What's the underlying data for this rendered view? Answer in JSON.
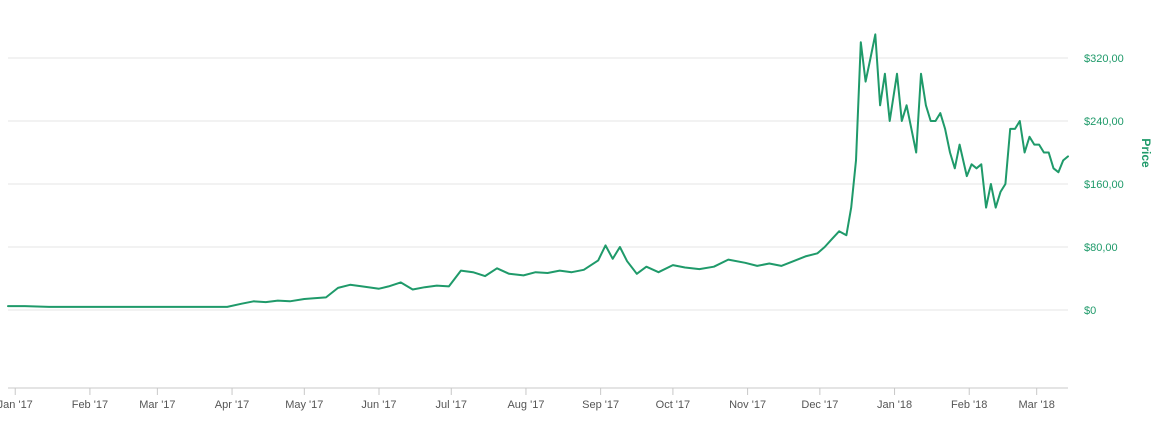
{
  "chart_data": {
    "type": "line",
    "title": "",
    "xlabel": "",
    "ylabel": "Price",
    "ylim": [
      -80,
      360
    ],
    "y_ticks": [
      "$0",
      "$80,00",
      "$160,00",
      "$240,00",
      "$320,00"
    ],
    "y_tick_values": [
      0,
      80,
      160,
      240,
      320
    ],
    "x_tick_labels": [
      "Jan '17",
      "Feb '17",
      "Mar '17",
      "Apr '17",
      "May '17",
      "Jun '17",
      "Jul '17",
      "Aug '17",
      "Sep '17",
      "Oct '17",
      "Nov '17",
      "Dec '17",
      "Jan '18",
      "Feb '18",
      "Mar '18"
    ],
    "x_tick_dates": [
      "2017-01-01",
      "2017-02-01",
      "2017-03-01",
      "2017-04-01",
      "2017-05-01",
      "2017-06-01",
      "2017-07-01",
      "2017-08-01",
      "2017-09-01",
      "2017-10-01",
      "2017-11-01",
      "2017-12-01",
      "2018-01-01",
      "2018-02-01",
      "2018-03-01"
    ],
    "x_range": [
      "2016-12-29",
      "2018-03-14"
    ],
    "grid": true,
    "legend": "none",
    "colors": {
      "line": "#1f9a6a",
      "axis_text": "#1f9a6a",
      "grid": "#e6e6e6"
    },
    "series": [
      {
        "x": [
          "2016-12-29",
          "2017-01-05",
          "2017-01-15",
          "2017-01-25",
          "2017-02-05",
          "2017-02-15",
          "2017-02-25",
          "2017-03-05",
          "2017-03-15",
          "2017-03-25",
          "2017-03-30",
          "2017-04-05",
          "2017-04-10",
          "2017-04-15",
          "2017-04-20",
          "2017-04-25",
          "2017-05-01",
          "2017-05-05",
          "2017-05-10",
          "2017-05-15",
          "2017-05-20",
          "2017-05-25",
          "2017-06-01",
          "2017-06-05",
          "2017-06-10",
          "2017-06-15",
          "2017-06-20",
          "2017-06-25",
          "2017-06-30",
          "2017-07-05",
          "2017-07-10",
          "2017-07-15",
          "2017-07-20",
          "2017-07-25",
          "2017-07-31",
          "2017-08-05",
          "2017-08-10",
          "2017-08-15",
          "2017-08-20",
          "2017-08-25",
          "2017-08-31",
          "2017-09-03",
          "2017-09-06",
          "2017-09-09",
          "2017-09-12",
          "2017-09-16",
          "2017-09-20",
          "2017-09-25",
          "2017-10-01",
          "2017-10-06",
          "2017-10-12",
          "2017-10-18",
          "2017-10-24",
          "2017-10-31",
          "2017-11-05",
          "2017-11-10",
          "2017-11-15",
          "2017-11-20",
          "2017-11-25",
          "2017-11-30",
          "2017-12-03",
          "2017-12-06",
          "2017-12-09",
          "2017-12-12",
          "2017-12-14",
          "2017-12-16",
          "2017-12-18",
          "2017-12-20",
          "2017-12-22",
          "2017-12-24",
          "2017-12-26",
          "2017-12-28",
          "2017-12-30",
          "2018-01-02",
          "2018-01-04",
          "2018-01-06",
          "2018-01-08",
          "2018-01-10",
          "2018-01-12",
          "2018-01-14",
          "2018-01-16",
          "2018-01-18",
          "2018-01-20",
          "2018-01-22",
          "2018-01-24",
          "2018-01-26",
          "2018-01-28",
          "2018-01-31",
          "2018-02-02",
          "2018-02-04",
          "2018-02-06",
          "2018-02-08",
          "2018-02-10",
          "2018-02-12",
          "2018-02-14",
          "2018-02-16",
          "2018-02-18",
          "2018-02-20",
          "2018-02-22",
          "2018-02-24",
          "2018-02-26",
          "2018-02-28",
          "2018-03-02",
          "2018-03-04",
          "2018-03-06",
          "2018-03-08",
          "2018-03-10",
          "2018-03-12",
          "2018-03-14"
        ],
        "y": [
          5,
          5,
          4,
          4,
          4,
          4,
          4,
          4,
          4,
          4,
          4,
          8,
          11,
          10,
          12,
          11,
          14,
          15,
          16,
          28,
          32,
          30,
          27,
          30,
          35,
          26,
          29,
          31,
          30,
          50,
          48,
          43,
          53,
          46,
          44,
          48,
          47,
          50,
          48,
          51,
          63,
          82,
          65,
          80,
          62,
          46,
          55,
          48,
          57,
          54,
          52,
          55,
          64,
          60,
          56,
          59,
          56,
          62,
          68,
          72,
          80,
          90,
          100,
          95,
          130,
          190,
          340,
          290,
          320,
          350,
          260,
          300,
          240,
          300,
          240,
          260,
          230,
          200,
          300,
          260,
          240,
          240,
          250,
          230,
          200,
          180,
          210,
          170,
          185,
          180,
          185,
          130,
          160,
          130,
          150,
          160,
          230,
          230,
          240,
          200,
          220,
          210,
          210,
          200,
          200,
          180,
          175,
          190,
          195
        ]
      }
    ]
  }
}
